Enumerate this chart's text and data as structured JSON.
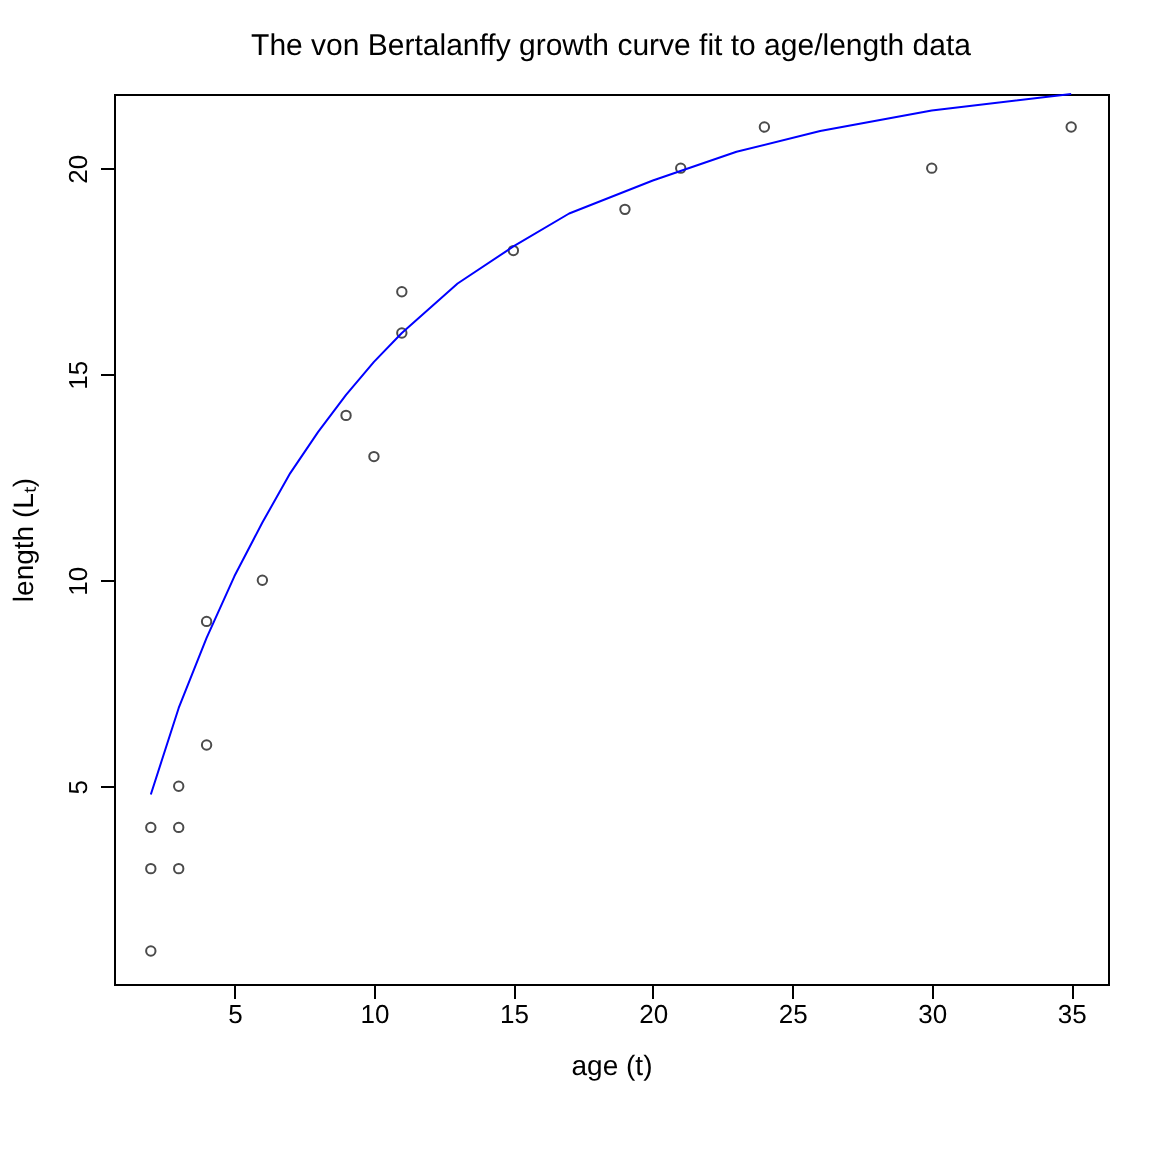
{
  "chart_data": {
    "type": "scatter",
    "title": "The von Bertalanffy growth curve fit to age/length data",
    "xlabel": "age (t)",
    "ylabel": "length (Lₜ)",
    "xlim": [
      0.68,
      36.32
    ],
    "ylim": [
      0.2,
      21.8
    ],
    "xticks": [
      5,
      10,
      15,
      20,
      25,
      30,
      35
    ],
    "yticks": [
      5,
      10,
      15,
      20
    ],
    "grid": false,
    "series": [
      {
        "color": "#000000",
        "marker": "circle",
        "x": [
          2,
          2,
          2,
          3,
          3,
          3,
          4,
          4,
          6,
          9,
          10,
          11,
          11,
          15,
          19,
          21,
          24,
          30,
          35
        ],
        "values": [
          1,
          3,
          4,
          3,
          4,
          5,
          6,
          9,
          10,
          14,
          13,
          16,
          17,
          18,
          19,
          20,
          21,
          20,
          21
        ]
      },
      {
        "type": "line",
        "color": "#0000ff",
        "line_style": "solid",
        "marker": "none",
        "x": [
          2,
          3,
          4,
          5,
          6,
          7,
          8,
          9,
          10,
          11,
          12,
          13,
          15,
          17,
          20,
          23,
          26,
          30,
          35
        ],
        "values": [
          4.8,
          6.9,
          8.6,
          10.1,
          11.4,
          12.6,
          13.6,
          14.5,
          15.3,
          16.0,
          16.6,
          17.2,
          18.1,
          18.9,
          19.7,
          20.4,
          20.9,
          21.4,
          21.8
        ]
      }
    ]
  }
}
